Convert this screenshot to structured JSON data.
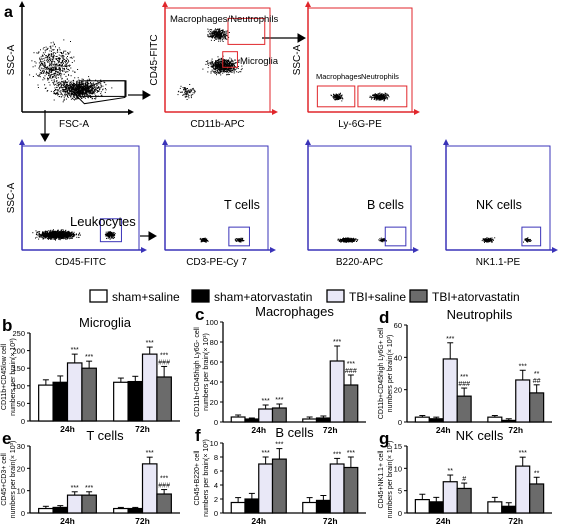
{
  "flow": {
    "panel_letter": "a",
    "plots": [
      {
        "id": "p1",
        "ylabel": "SSC-A",
        "xlabel": "FSC-A",
        "color": "#000000",
        "gates": []
      },
      {
        "id": "p2",
        "ylabel": "CD45-FITC",
        "xlabel": "CD11b-APC",
        "color": "#e0262b",
        "gates": [
          {
            "label": "Macrophages/Neutrophils"
          },
          {
            "label": "Microglia"
          }
        ]
      },
      {
        "id": "p3",
        "ylabel": "SSC-A",
        "xlabel": "Ly-6G-PE",
        "color": "#e0262b",
        "gates": [
          {
            "label": "Macrophages"
          },
          {
            "label": "Neutrophils"
          }
        ]
      },
      {
        "id": "p4",
        "ylabel": "SSC-A",
        "xlabel": "CD45-FITC",
        "color": "#3a33b8",
        "gates": [
          {
            "label": "Leukocytes"
          }
        ]
      },
      {
        "id": "p5",
        "ylabel": "",
        "xlabel": "CD3-PE-Cy 7",
        "color": "#3a33b8",
        "gates": [
          {
            "label": "T cells"
          }
        ]
      },
      {
        "id": "p6",
        "ylabel": "",
        "xlabel": "B220-APC",
        "color": "#3a33b8",
        "gates": [
          {
            "label": "B cells"
          }
        ]
      },
      {
        "id": "p7",
        "ylabel": "",
        "xlabel": "NK1.1-PE",
        "color": "#3a33b8",
        "gates": [
          {
            "label": "NK cells"
          }
        ]
      }
    ]
  },
  "legend": {
    "items": [
      {
        "label": "sham+saline",
        "color": "#ffffff"
      },
      {
        "label": "sham+atorvastatin",
        "color": "#000000"
      },
      {
        "label": "TBI+saline",
        "color": "#e9e8f7"
      },
      {
        "label": "TBI+atorvastatin",
        "color": "#6b6b6b"
      }
    ]
  },
  "chart_data": [
    {
      "type": "bar",
      "panel": "b",
      "title": "Microglia",
      "ylabel": "CD11b+CD45low cell numbers per brain(× 10³)",
      "ylim": [
        0,
        250
      ],
      "yticks": [
        0,
        50,
        100,
        150,
        200,
        250
      ],
      "categories": [
        "24h",
        "72h"
      ],
      "series": [
        {
          "name": "sham+saline",
          "values": [
            102,
            110
          ],
          "err": [
            15,
            12
          ]
        },
        {
          "name": "sham+atorvastatin",
          "values": [
            110,
            112
          ],
          "err": [
            18,
            15
          ]
        },
        {
          "name": "TBI+saline",
          "values": [
            165,
            190
          ],
          "err": [
            25,
            20
          ]
        },
        {
          "name": "TBI+atorvastatin",
          "values": [
            150,
            125
          ],
          "err": [
            20,
            30
          ]
        }
      ],
      "annotations": [
        [
          "",
          "",
          "***",
          "***"
        ],
        [
          "",
          "",
          "***",
          "***\n###"
        ]
      ]
    },
    {
      "type": "bar",
      "panel": "c",
      "title": "Macrophages",
      "ylabel": "CD11b+CD45high Ly6G- cell numbers per brain(× 10³)",
      "ylim": [
        0,
        100
      ],
      "yticks": [
        0,
        20,
        40,
        60,
        80,
        100
      ],
      "categories": [
        "24h",
        "72h"
      ],
      "series": [
        {
          "name": "sham+saline",
          "values": [
            5,
            3
          ],
          "err": [
            2,
            2
          ]
        },
        {
          "name": "sham+atorvastatin",
          "values": [
            3,
            4
          ],
          "err": [
            1,
            2
          ]
        },
        {
          "name": "TBI+saline",
          "values": [
            13,
            61
          ],
          "err": [
            4,
            15
          ]
        },
        {
          "name": "TBI+atorvastatin",
          "values": [
            14,
            37
          ],
          "err": [
            4,
            10
          ]
        }
      ],
      "annotations": [
        [
          "",
          "",
          "***",
          "***"
        ],
        [
          "",
          "",
          "***",
          "***\n###"
        ]
      ]
    },
    {
      "type": "bar",
      "panel": "d",
      "title": "Neutrophils",
      "ylabel": "CD11b+CD45high Ly6G+ cell numbers per brain(× 10³)",
      "ylim": [
        0,
        60
      ],
      "yticks": [
        0,
        20,
        40,
        60
      ],
      "categories": [
        "24h",
        "72h"
      ],
      "series": [
        {
          "name": "sham+saline",
          "values": [
            3,
            3
          ],
          "err": [
            1,
            1
          ]
        },
        {
          "name": "sham+atorvastatin",
          "values": [
            2,
            1
          ],
          "err": [
            1,
            1
          ]
        },
        {
          "name": "TBI+saline",
          "values": [
            39,
            26
          ],
          "err": [
            10,
            6
          ]
        },
        {
          "name": "TBI+atorvastatin",
          "values": [
            16,
            18
          ],
          "err": [
            5,
            5
          ]
        }
      ],
      "annotations": [
        [
          "",
          "",
          "***",
          "***\n###"
        ],
        [
          "",
          "",
          "***",
          "**\n##"
        ]
      ]
    },
    {
      "type": "bar",
      "panel": "e",
      "title": "T cells",
      "ylabel": "CD45+CD3+ cell numbers per brain(× 10³)",
      "ylim": [
        0,
        30
      ],
      "yticks": [
        0,
        10,
        20,
        30
      ],
      "categories": [
        "24h",
        "72h"
      ],
      "series": [
        {
          "name": "sham+saline",
          "values": [
            2,
            2
          ],
          "err": [
            1,
            0.5
          ]
        },
        {
          "name": "sham+atorvastatin",
          "values": [
            2.5,
            2
          ],
          "err": [
            0.8,
            0.5
          ]
        },
        {
          "name": "TBI+saline",
          "values": [
            8,
            22
          ],
          "err": [
            1.5,
            3
          ]
        },
        {
          "name": "TBI+atorvastatin",
          "values": [
            8,
            8.5
          ],
          "err": [
            1.5,
            2
          ]
        }
      ],
      "annotations": [
        [
          "",
          "",
          "***",
          "***"
        ],
        [
          "",
          "",
          "***",
          "***\n###"
        ]
      ]
    },
    {
      "type": "bar",
      "panel": "f",
      "title": "B cells",
      "ylabel": "CD45+B220+ cell numbers per brain(× 10³)",
      "ylim": [
        0,
        10
      ],
      "yticks": [
        0,
        2,
        4,
        6,
        8,
        10
      ],
      "categories": [
        "24h",
        "72h"
      ],
      "series": [
        {
          "name": "sham+saline",
          "values": [
            1.5,
            1.5
          ],
          "err": [
            0.7,
            0.7
          ]
        },
        {
          "name": "sham+atorvastatin",
          "values": [
            2,
            1.8
          ],
          "err": [
            0.8,
            0.7
          ]
        },
        {
          "name": "TBI+saline",
          "values": [
            7,
            7
          ],
          "err": [
            1,
            0.8
          ]
        },
        {
          "name": "TBI+atorvastatin",
          "values": [
            7.7,
            6.5
          ],
          "err": [
            1.5,
            1.5
          ]
        }
      ],
      "annotations": [
        [
          "",
          "",
          "***",
          "***"
        ],
        [
          "",
          "",
          "***",
          "***"
        ]
      ]
    },
    {
      "type": "bar",
      "panel": "g",
      "title": "NK cells",
      "ylabel": "CD45+NK1.1+ cell numbers per brain(× 10³)",
      "ylim": [
        0,
        15
      ],
      "yticks": [
        0,
        5,
        10,
        15
      ],
      "categories": [
        "24h",
        "72h"
      ],
      "series": [
        {
          "name": "sham+saline",
          "values": [
            3,
            2.5
          ],
          "err": [
            1.2,
            1
          ]
        },
        {
          "name": "sham+atorvastatin",
          "values": [
            2.5,
            1.5
          ],
          "err": [
            1,
            0.8
          ]
        },
        {
          "name": "TBI+saline",
          "values": [
            7,
            10.5
          ],
          "err": [
            1.5,
            2
          ]
        },
        {
          "name": "TBI+atorvastatin",
          "values": [
            5.5,
            6.5
          ],
          "err": [
            1.2,
            1.5
          ]
        }
      ],
      "annotations": [
        [
          "",
          "",
          "**",
          "#"
        ],
        [
          "",
          "",
          "***",
          "**"
        ]
      ]
    }
  ]
}
